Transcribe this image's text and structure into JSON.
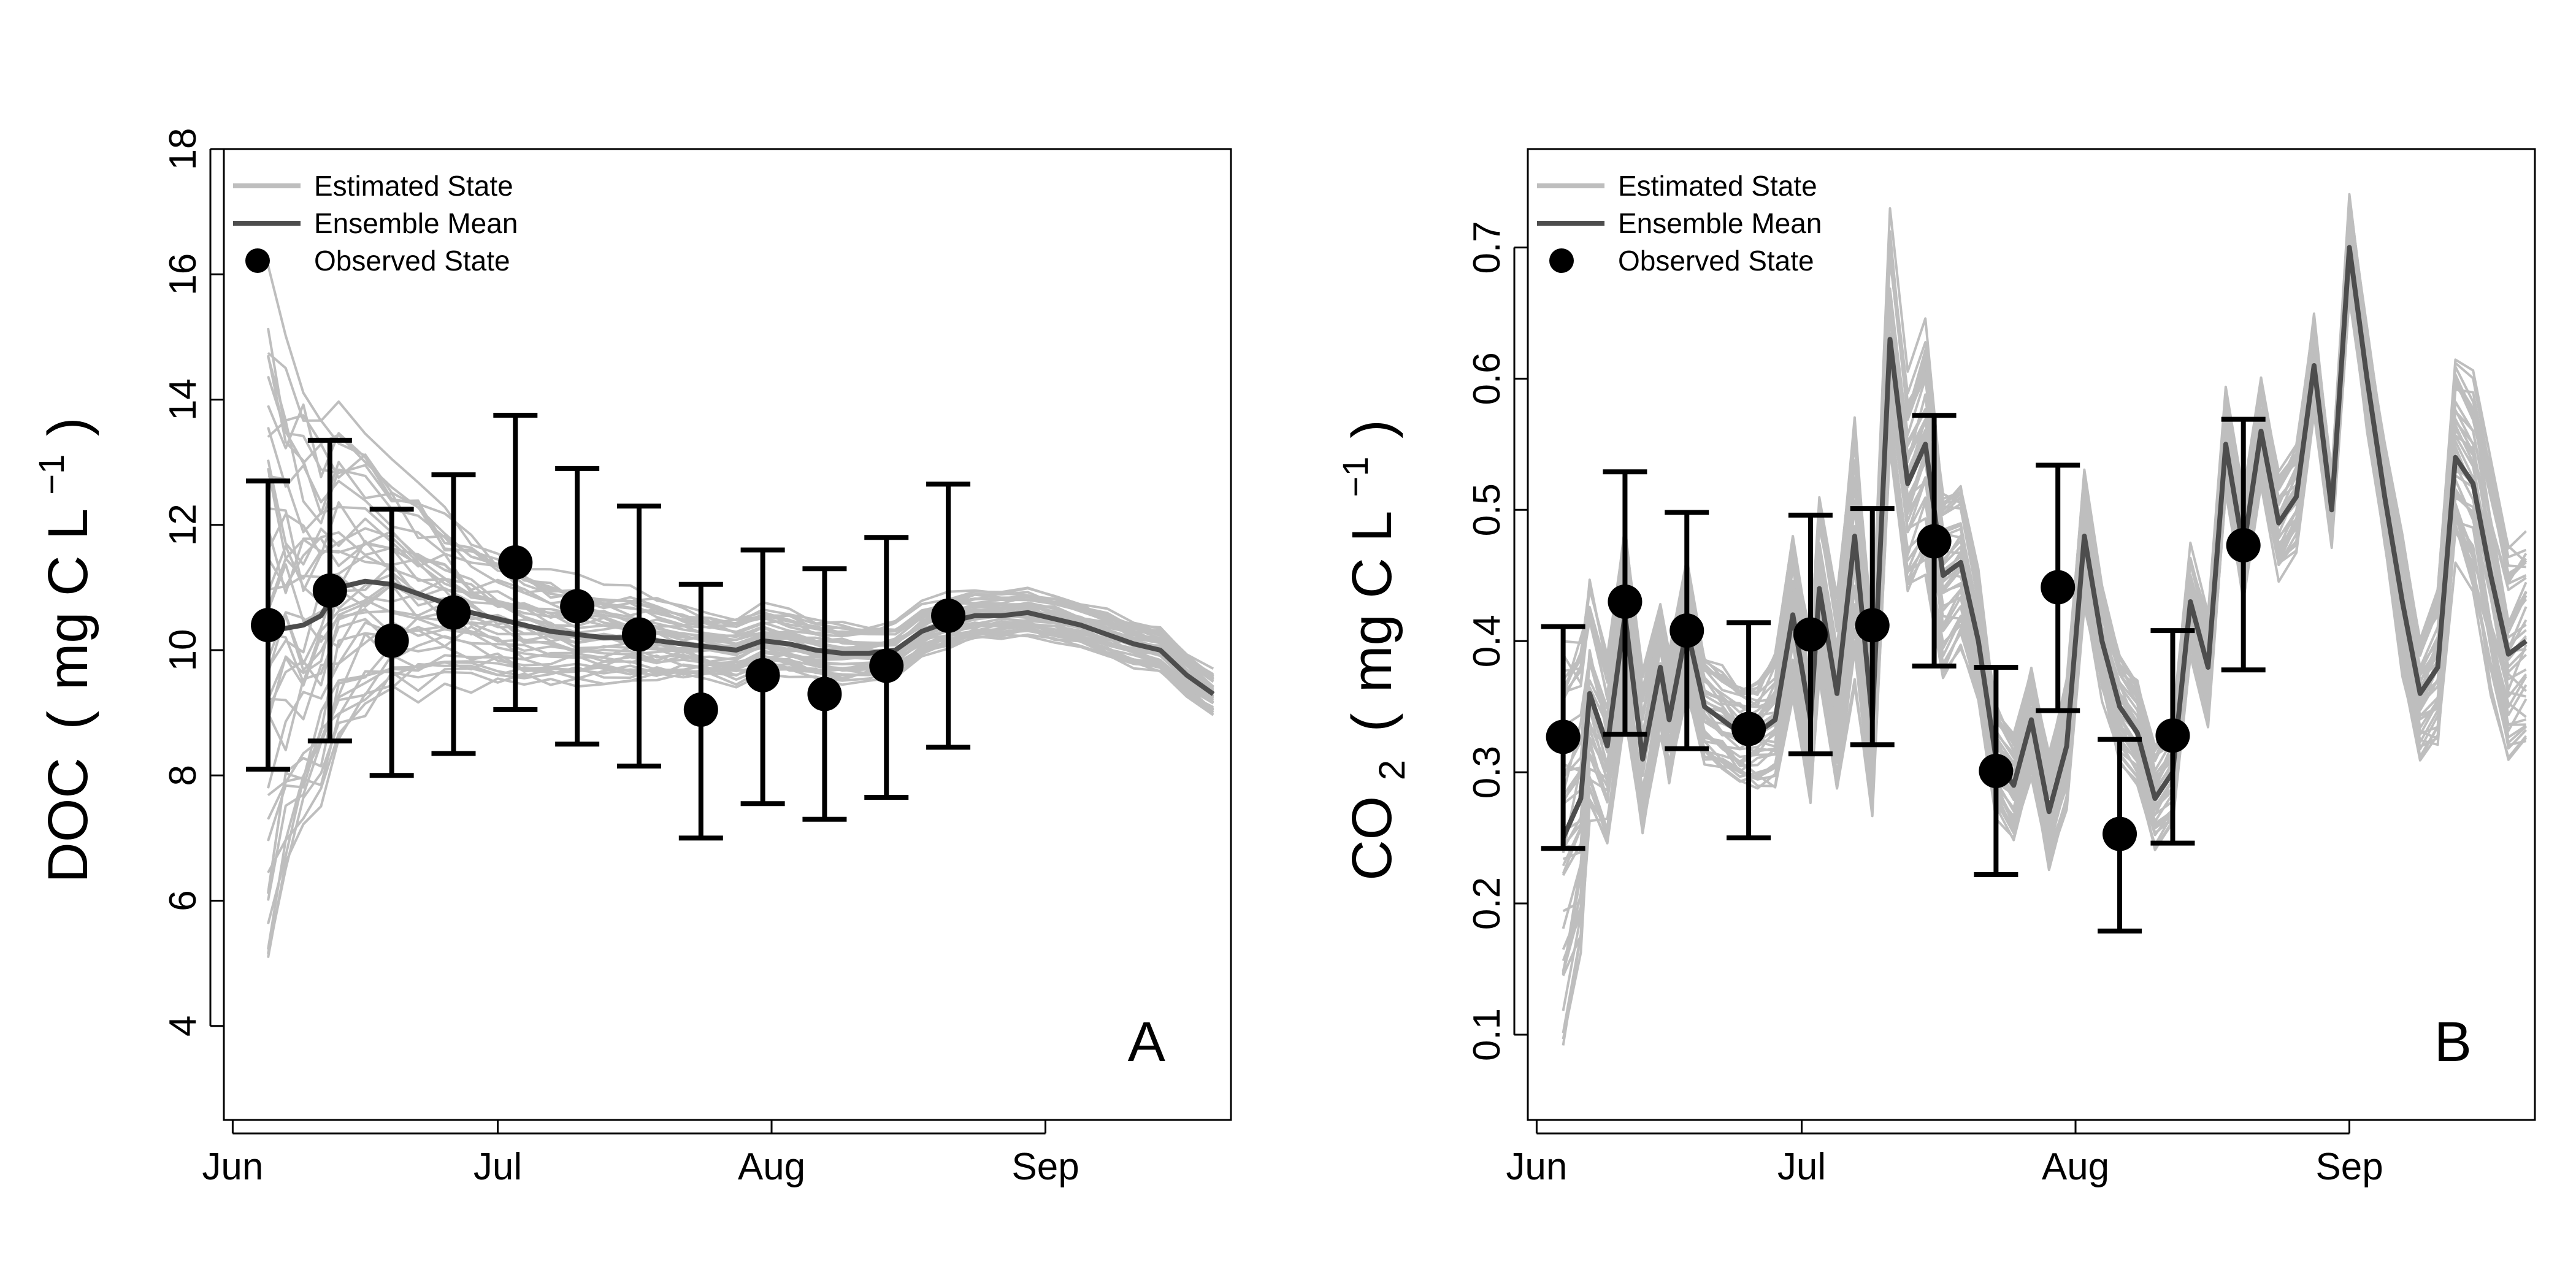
{
  "chart_data": [
    {
      "type": "line",
      "panel_letter": "A",
      "ylabel_main": "DOC",
      "ylabel_paren_open": "(",
      "ylabel_unit": "mg C L",
      "ylabel_superscript": "−1",
      "ylabel_paren_close": ")",
      "x_ticks": [
        "Jun",
        "Jul",
        "Aug",
        "Sep"
      ],
      "xlim": [
        "2014-05-31",
        "2014-09-22"
      ],
      "ylim": [
        2.5,
        18
      ],
      "y_ticks": [
        4,
        6,
        8,
        10,
        12,
        14,
        16,
        18
      ],
      "legend": [
        "Estimated State",
        "Ensemble Mean",
        "Observed State"
      ],
      "legend_position": "top-left",
      "colors": {
        "ensemble": "#bebebe",
        "mean": "#4d4d4d",
        "observed": "#000000"
      },
      "ensemble_dates": [
        "2014-06-05",
        "2014-06-07",
        "2014-06-09",
        "2014-06-11",
        "2014-06-13",
        "2014-06-16",
        "2014-06-19",
        "2014-06-22",
        "2014-06-25",
        "2014-06-28",
        "2014-07-01",
        "2014-07-04",
        "2014-07-07",
        "2014-07-10",
        "2014-07-13",
        "2014-07-16",
        "2014-07-19",
        "2014-07-22",
        "2014-07-25",
        "2014-07-28",
        "2014-07-31",
        "2014-08-03",
        "2014-08-06",
        "2014-08-09",
        "2014-08-12",
        "2014-08-15",
        "2014-08-18",
        "2014-08-21",
        "2014-08-24",
        "2014-08-27",
        "2014-08-30",
        "2014-09-02",
        "2014-09-05",
        "2014-09-08",
        "2014-09-11",
        "2014-09-14",
        "2014-09-17",
        "2014-09-20"
      ],
      "ensemble_mean": [
        10.3,
        10.35,
        10.4,
        10.55,
        11.0,
        11.1,
        11.05,
        10.9,
        10.75,
        10.6,
        10.5,
        10.4,
        10.3,
        10.25,
        10.2,
        10.2,
        10.15,
        10.1,
        10.05,
        10.0,
        10.15,
        10.1,
        10.0,
        9.95,
        9.95,
        10.0,
        10.3,
        10.45,
        10.55,
        10.55,
        10.6,
        10.5,
        10.4,
        10.25,
        10.1,
        10.0,
        9.6,
        9.3
      ],
      "ensemble_spread": [
        5.0,
        4.2,
        3.5,
        2.8,
        2.4,
        2.0,
        1.7,
        1.5,
        1.3,
        1.1,
        1.0,
        0.9,
        0.8,
        0.75,
        0.7,
        0.65,
        0.6,
        0.55,
        0.5,
        0.5,
        0.48,
        0.46,
        0.44,
        0.42,
        0.4,
        0.4,
        0.38,
        0.38,
        0.36,
        0.36,
        0.35,
        0.35,
        0.34,
        0.34,
        0.33,
        0.33,
        0.33,
        0.33
      ],
      "observed": [
        {
          "date": "2014-06-05",
          "value": 10.4,
          "lower": 8.1,
          "upper": 12.7
        },
        {
          "date": "2014-06-12",
          "value": 10.95,
          "lower": 8.55,
          "upper": 13.35
        },
        {
          "date": "2014-06-19",
          "value": 10.15,
          "lower": 8.0,
          "upper": 12.25
        },
        {
          "date": "2014-06-26",
          "value": 10.6,
          "lower": 8.35,
          "upper": 12.8
        },
        {
          "date": "2014-07-03",
          "value": 11.4,
          "lower": 9.05,
          "upper": 13.75
        },
        {
          "date": "2014-07-10",
          "value": 10.7,
          "lower": 8.5,
          "upper": 12.9
        },
        {
          "date": "2014-07-17",
          "value": 10.25,
          "lower": 8.15,
          "upper": 12.3
        },
        {
          "date": "2014-07-24",
          "value": 9.05,
          "lower": 7.0,
          "upper": 11.05
        },
        {
          "date": "2014-07-31",
          "value": 9.6,
          "lower": 7.55,
          "upper": 11.6
        },
        {
          "date": "2014-08-07",
          "value": 9.3,
          "lower": 7.3,
          "upper": 11.3
        },
        {
          "date": "2014-08-14",
          "value": 9.75,
          "lower": 7.65,
          "upper": 11.8
        },
        {
          "date": "2014-08-21",
          "value": 10.55,
          "lower": 8.45,
          "upper": 12.65
        }
      ]
    },
    {
      "type": "line",
      "panel_letter": "B",
      "ylabel_main": "CO",
      "ylabel_subscript": "2",
      "ylabel_paren_open": "(",
      "ylabel_unit": "mg C L",
      "ylabel_superscript": "−1",
      "ylabel_paren_close": ")",
      "x_ticks": [
        "Jun",
        "Jul",
        "Aug",
        "Sep"
      ],
      "xlim": [
        "2014-05-31",
        "2014-09-22"
      ],
      "ylim": [
        0.035,
        0.775
      ],
      "y_ticks": [
        0.1,
        0.2,
        0.3,
        0.4,
        0.5,
        0.6,
        0.7
      ],
      "legend": [
        "Estimated State",
        "Ensemble Mean",
        "Observed State"
      ],
      "legend_position": "top-left",
      "colors": {
        "ensemble": "#bebebe",
        "mean": "#4d4d4d",
        "observed": "#000000"
      },
      "ensemble_dates": [
        "2014-06-04",
        "2014-06-06",
        "2014-06-07",
        "2014-06-09",
        "2014-06-11",
        "2014-06-13",
        "2014-06-15",
        "2014-06-16",
        "2014-06-18",
        "2014-06-20",
        "2014-06-22",
        "2014-06-24",
        "2014-06-26",
        "2014-06-28",
        "2014-06-30",
        "2014-07-02",
        "2014-07-03",
        "2014-07-05",
        "2014-07-07",
        "2014-07-09",
        "2014-07-11",
        "2014-07-13",
        "2014-07-15",
        "2014-07-17",
        "2014-07-19",
        "2014-07-21",
        "2014-07-23",
        "2014-07-25",
        "2014-07-27",
        "2014-07-29",
        "2014-07-31",
        "2014-08-02",
        "2014-08-04",
        "2014-08-06",
        "2014-08-08",
        "2014-08-10",
        "2014-08-12",
        "2014-08-14",
        "2014-08-16",
        "2014-08-18",
        "2014-08-20",
        "2014-08-22",
        "2014-08-24",
        "2014-08-26",
        "2014-08-28",
        "2014-08-30",
        "2014-09-01",
        "2014-09-03",
        "2014-09-05",
        "2014-09-07",
        "2014-09-09",
        "2014-09-11",
        "2014-09-13",
        "2014-09-15",
        "2014-09-17",
        "2014-09-19",
        "2014-09-21"
      ],
      "ensemble_mean": [
        0.25,
        0.28,
        0.36,
        0.32,
        0.42,
        0.31,
        0.38,
        0.34,
        0.41,
        0.35,
        0.34,
        0.33,
        0.33,
        0.34,
        0.42,
        0.34,
        0.44,
        0.36,
        0.48,
        0.34,
        0.63,
        0.52,
        0.55,
        0.45,
        0.46,
        0.4,
        0.31,
        0.29,
        0.34,
        0.27,
        0.32,
        0.48,
        0.4,
        0.35,
        0.33,
        0.28,
        0.3,
        0.43,
        0.38,
        0.55,
        0.47,
        0.56,
        0.49,
        0.51,
        0.61,
        0.5,
        0.7,
        0.6,
        0.51,
        0.43,
        0.36,
        0.38,
        0.54,
        0.52,
        0.45,
        0.39,
        0.4
      ],
      "ensemble_spread": [
        0.15,
        0.12,
        0.09,
        0.07,
        0.07,
        0.06,
        0.05,
        0.05,
        0.05,
        0.04,
        0.04,
        0.04,
        0.04,
        0.05,
        0.06,
        0.06,
        0.07,
        0.07,
        0.1,
        0.07,
        0.09,
        0.08,
        0.09,
        0.07,
        0.06,
        0.05,
        0.04,
        0.04,
        0.04,
        0.04,
        0.05,
        0.05,
        0.04,
        0.04,
        0.04,
        0.04,
        0.04,
        0.04,
        0.04,
        0.04,
        0.04,
        0.04,
        0.04,
        0.04,
        0.04,
        0.03,
        0.04,
        0.04,
        0.04,
        0.05,
        0.05,
        0.06,
        0.07,
        0.08,
        0.08,
        0.08,
        0.08
      ],
      "observed": [
        {
          "date": "2014-06-04",
          "value": 0.327,
          "lower": 0.242,
          "upper": 0.411
        },
        {
          "date": "2014-06-11",
          "value": 0.43,
          "lower": 0.329,
          "upper": 0.529
        },
        {
          "date": "2014-06-18",
          "value": 0.408,
          "lower": 0.318,
          "upper": 0.498
        },
        {
          "date": "2014-06-25",
          "value": 0.333,
          "lower": 0.25,
          "upper": 0.414
        },
        {
          "date": "2014-07-02",
          "value": 0.405,
          "lower": 0.314,
          "upper": 0.496
        },
        {
          "date": "2014-07-09",
          "value": 0.412,
          "lower": 0.321,
          "upper": 0.501
        },
        {
          "date": "2014-07-16",
          "value": 0.476,
          "lower": 0.381,
          "upper": 0.572
        },
        {
          "date": "2014-07-23",
          "value": 0.301,
          "lower": 0.222,
          "upper": 0.38
        },
        {
          "date": "2014-07-30",
          "value": 0.441,
          "lower": 0.347,
          "upper": 0.534
        },
        {
          "date": "2014-08-06",
          "value": 0.253,
          "lower": 0.179,
          "upper": 0.325
        },
        {
          "date": "2014-08-12",
          "value": 0.328,
          "lower": 0.246,
          "upper": 0.408
        },
        {
          "date": "2014-08-20",
          "value": 0.473,
          "lower": 0.378,
          "upper": 0.569
        }
      ]
    }
  ]
}
